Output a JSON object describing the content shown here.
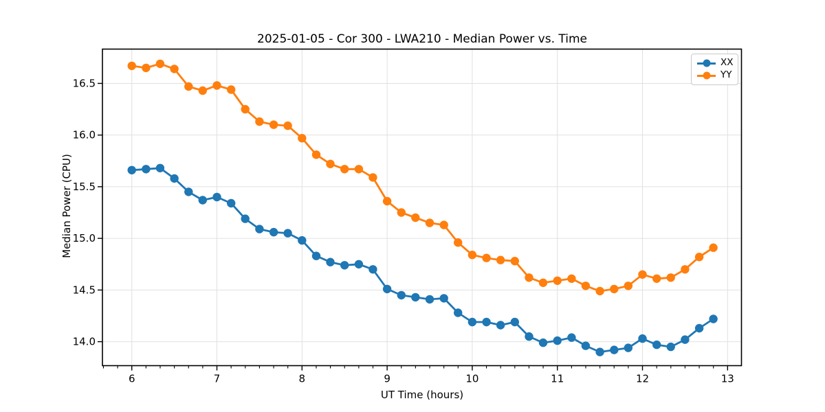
{
  "chart_data": {
    "type": "line",
    "title": "2025-01-05 - Cor 300 - LWA210 - Median Power vs. Time",
    "xlabel": "UT Time (hours)",
    "ylabel": "Median Power (CPU)",
    "xlim": [
      5.655,
      13.163
    ],
    "ylim": [
      13.768,
      16.832
    ],
    "x_ticks": [
      6,
      7,
      8,
      9,
      10,
      11,
      12,
      13
    ],
    "y_ticks": [
      14.0,
      14.5,
      15.0,
      15.5,
      16.0,
      16.5
    ],
    "x_minor_tick_step_hours": 0.1667,
    "grid": true,
    "grid_color": "#e0e0e0",
    "axis_color": "#000000",
    "legend_position": "upper right",
    "marker": "circle",
    "x": [
      6.0,
      6.167,
      6.333,
      6.5,
      6.667,
      6.833,
      7.0,
      7.167,
      7.333,
      7.5,
      7.667,
      7.833,
      8.0,
      8.167,
      8.333,
      8.5,
      8.667,
      8.833,
      9.0,
      9.167,
      9.333,
      9.5,
      9.667,
      9.833,
      10.0,
      10.167,
      10.333,
      10.5,
      10.667,
      10.833,
      11.0,
      11.167,
      11.333,
      11.5,
      11.667,
      11.833,
      12.0,
      12.167,
      12.333,
      12.5,
      12.667,
      12.833
    ],
    "series": [
      {
        "name": "XX",
        "color": "#1f77b4",
        "values": [
          15.66,
          15.67,
          15.68,
          15.58,
          15.45,
          15.37,
          15.4,
          15.34,
          15.19,
          15.09,
          15.06,
          15.05,
          14.98,
          14.83,
          14.77,
          14.74,
          14.75,
          14.7,
          14.51,
          14.45,
          14.43,
          14.41,
          14.42,
          14.28,
          14.19,
          14.19,
          14.16,
          14.19,
          14.05,
          13.99,
          14.01,
          14.04,
          13.96,
          13.9,
          13.92,
          13.94,
          14.03,
          13.97,
          13.95,
          14.02,
          14.13,
          14.22
        ]
      },
      {
        "name": "YY",
        "color": "#ff7f0e",
        "values": [
          16.67,
          16.65,
          16.69,
          16.64,
          16.47,
          16.43,
          16.48,
          16.44,
          16.25,
          16.13,
          16.1,
          16.09,
          15.97,
          15.81,
          15.72,
          15.67,
          15.67,
          15.59,
          15.36,
          15.25,
          15.2,
          15.15,
          15.13,
          14.96,
          14.84,
          14.81,
          14.79,
          14.78,
          14.62,
          14.57,
          14.59,
          14.61,
          14.54,
          14.49,
          14.51,
          14.54,
          14.65,
          14.61,
          14.62,
          14.7,
          14.82,
          14.91
        ]
      }
    ]
  }
}
